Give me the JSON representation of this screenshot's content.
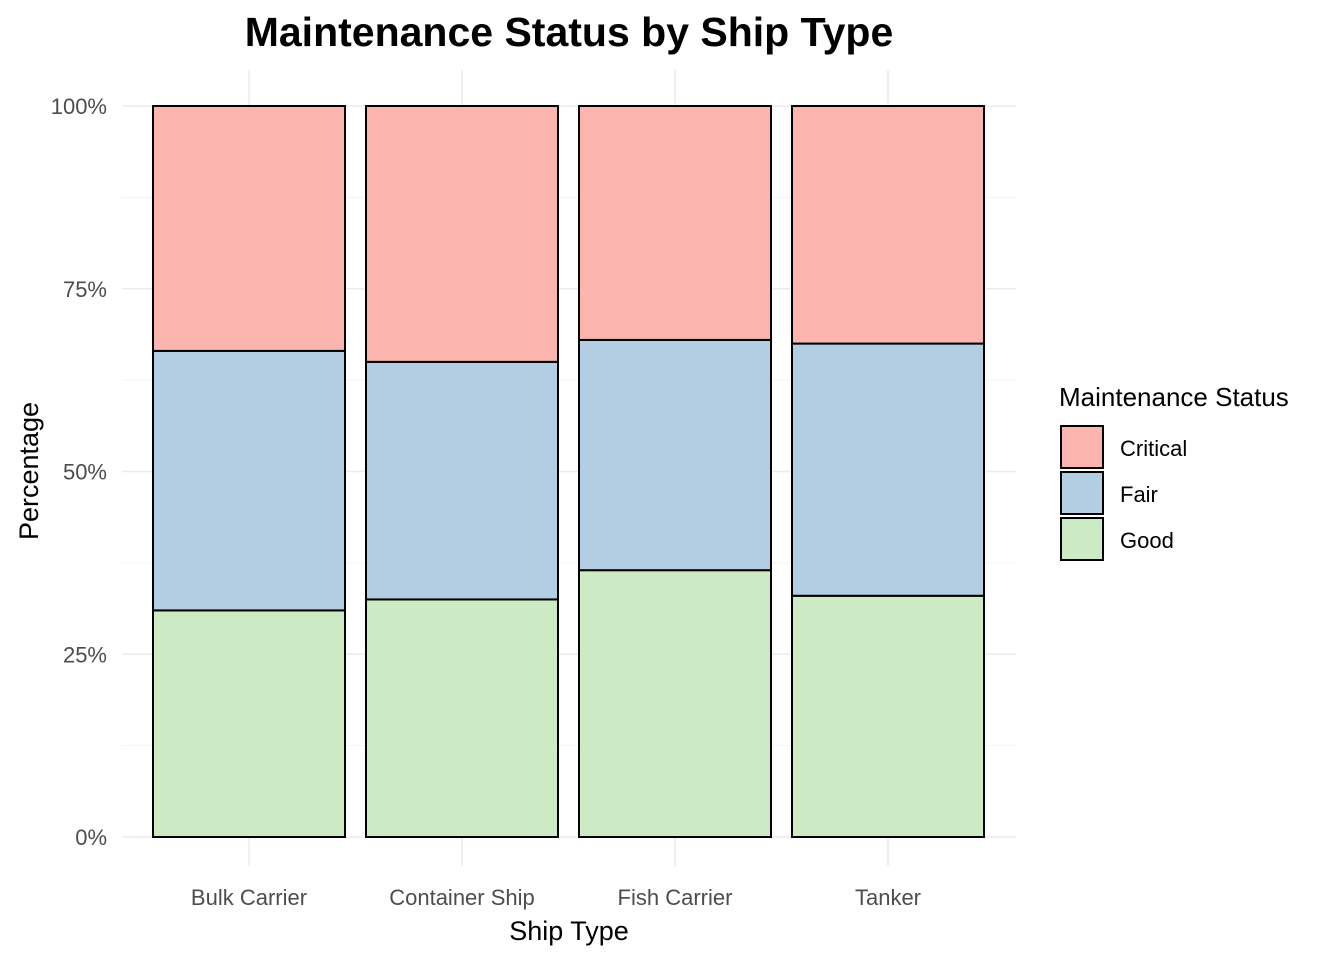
{
  "chart_data": {
    "type": "bar",
    "stacked": true,
    "percent": true,
    "title": "Maintenance Status by Ship Type",
    "xlabel": "Ship Type",
    "ylabel": "Percentage",
    "categories": [
      "Bulk Carrier",
      "Container Ship",
      "Fish Carrier",
      "Tanker"
    ],
    "ylim": [
      0,
      1
    ],
    "yticks": [
      0,
      0.25,
      0.5,
      0.75,
      1
    ],
    "ytick_labels": [
      "0%",
      "25%",
      "50%",
      "75%",
      "100%"
    ],
    "stack_order_bottom_to_top": [
      "Good",
      "Fair",
      "Critical"
    ],
    "series": [
      {
        "name": "Critical",
        "color": "#FBB4AE",
        "values": [
          0.335,
          0.35,
          0.32,
          0.325
        ]
      },
      {
        "name": "Fair",
        "color": "#B3CDE3",
        "values": [
          0.355,
          0.325,
          0.315,
          0.345
        ]
      },
      {
        "name": "Good",
        "color": "#CCEBC5",
        "values": [
          0.31,
          0.325,
          0.365,
          0.33
        ]
      }
    ],
    "legend": {
      "title": "Maintenance Status",
      "position": "right",
      "items": [
        "Critical",
        "Fair",
        "Good"
      ]
    },
    "grid": true
  }
}
